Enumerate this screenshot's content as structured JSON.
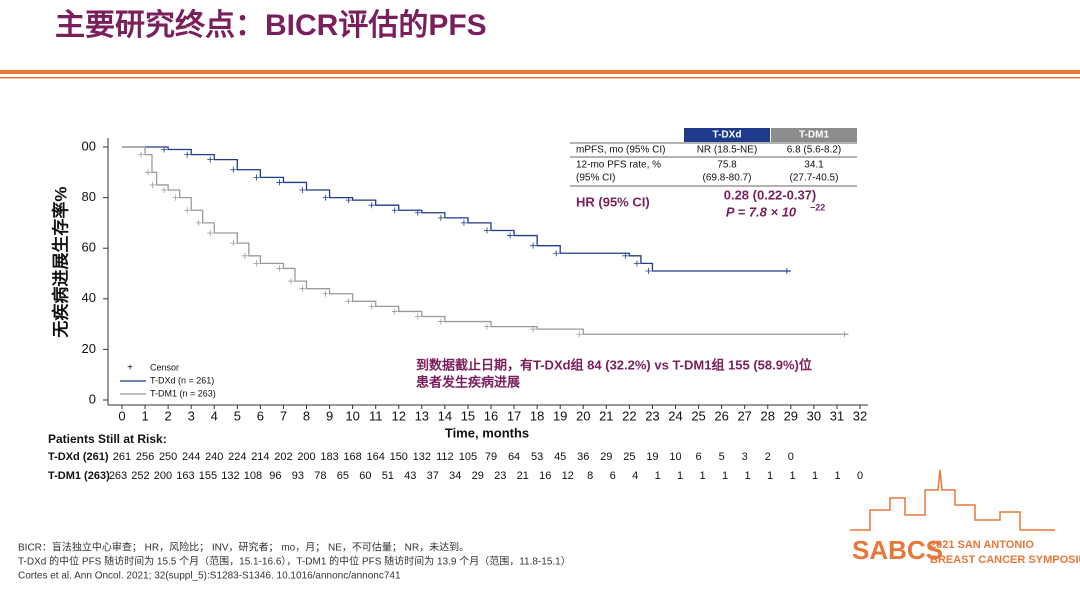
{
  "header": {
    "title": "主要研究终点：BICR评估的PFS"
  },
  "chart_data": {
    "type": "step",
    "xlabel": "Time, months",
    "ylabel": "无疾病进展生存率%",
    "xlim": [
      0,
      32
    ],
    "ylim": [
      0,
      100
    ],
    "xticks": [
      0,
      1,
      2,
      3,
      4,
      5,
      6,
      7,
      8,
      9,
      10,
      11,
      12,
      13,
      14,
      15,
      16,
      17,
      18,
      19,
      20,
      21,
      22,
      23,
      24,
      25,
      26,
      27,
      28,
      29,
      30,
      31,
      32
    ],
    "yticks": [
      {
        "value": 100,
        "label": "00"
      },
      80,
      60,
      40,
      20,
      0
    ],
    "legend_title": "Censor",
    "series": [
      {
        "name": "T-DXd (n = 261)",
        "color": "#1f3a8a",
        "x": [
          0,
          2,
          3,
          4,
          5,
          6,
          7,
          8,
          9,
          10,
          11,
          12,
          13,
          14,
          15,
          16,
          17,
          18,
          19,
          22,
          22.5,
          23,
          29
        ],
        "values": [
          100,
          99,
          97,
          95,
          91,
          88,
          86,
          83,
          80,
          79,
          77,
          75,
          74,
          72,
          70,
          67,
          65,
          61,
          58,
          57,
          54,
          51,
          51
        ]
      },
      {
        "name": "T-DM1 (n = 263)",
        "color": "#9a9a9a",
        "x": [
          0,
          1,
          1.3,
          1.5,
          2,
          2.5,
          3,
          3.5,
          4,
          5,
          5.5,
          6,
          7,
          7.5,
          8,
          9,
          10,
          11,
          12,
          13,
          14,
          16,
          18,
          20,
          31.5
        ],
        "values": [
          100,
          97,
          90,
          85,
          83,
          80,
          75,
          70,
          66,
          62,
          57,
          54,
          52,
          47,
          44,
          42,
          39,
          37,
          35,
          33,
          31,
          29,
          28,
          26,
          26
        ]
      }
    ],
    "annotation": [
      "到数据截止日期，有T-DXd组 84 (32.2%) vs T-DM1组 155 (58.9%)位",
      "患者发生疾病进展"
    ]
  },
  "summary_table": {
    "columns": [
      "T-DXd",
      "T-DM1"
    ],
    "rows": [
      [
        "mPFS, mo (95% CI)",
        "NR (18.5-NE)",
        "6.8 (5.6-8.2)"
      ],
      [
        "12-mo PFS rate, %",
        "75.8",
        "34.1"
      ],
      [
        "(95% CI)",
        "(69.8-80.7)",
        "(27.7-40.5)"
      ]
    ],
    "hr_label": "HR (95% CI)",
    "hr_value": "0.28 (0.22-0.37)",
    "p_value": "P = 7.8 × 10",
    "p_exponent": "−22"
  },
  "risk_table": {
    "title": "Patients Still at Risk:",
    "rows": [
      {
        "label": "T-DXd (261)",
        "values": [
          261,
          256,
          250,
          244,
          240,
          224,
          214,
          202,
          200,
          183,
          168,
          164,
          150,
          132,
          112,
          105,
          79,
          64,
          53,
          45,
          36,
          29,
          25,
          19,
          10,
          6,
          5,
          3,
          2,
          0
        ]
      },
      {
        "label": "T-DM1 (263)",
        "values": [
          263,
          252,
          200,
          163,
          155,
          132,
          108,
          96,
          93,
          78,
          65,
          60,
          51,
          43,
          37,
          34,
          29,
          23,
          21,
          16,
          12,
          8,
          6,
          4,
          1,
          1,
          1,
          1,
          1,
          1,
          1,
          1,
          1,
          0
        ]
      }
    ]
  },
  "footnotes": [
    "BICR：盲法独立中心审查； HR，风险比； INV，研究者； mo，月； NE，不可估量； NR，未达到。",
    "T-DXd 的中位 PFS 随访时间为 15.5 个月（范围，15.1-16.6），T-DM1 的中位 PFS 随访时间为 13.9 个月（范围，11.8-15.1）",
    "Cortes et al. Ann Oncol. 2021; 32(suppl_5):S1283-S1346. 10.1016/annonc/annonc741"
  ],
  "logo": {
    "mark": "SABCS",
    "line1": "2021 SAN ANTONIO",
    "line2": "BREAST CANCER SYMPOSIUM"
  }
}
